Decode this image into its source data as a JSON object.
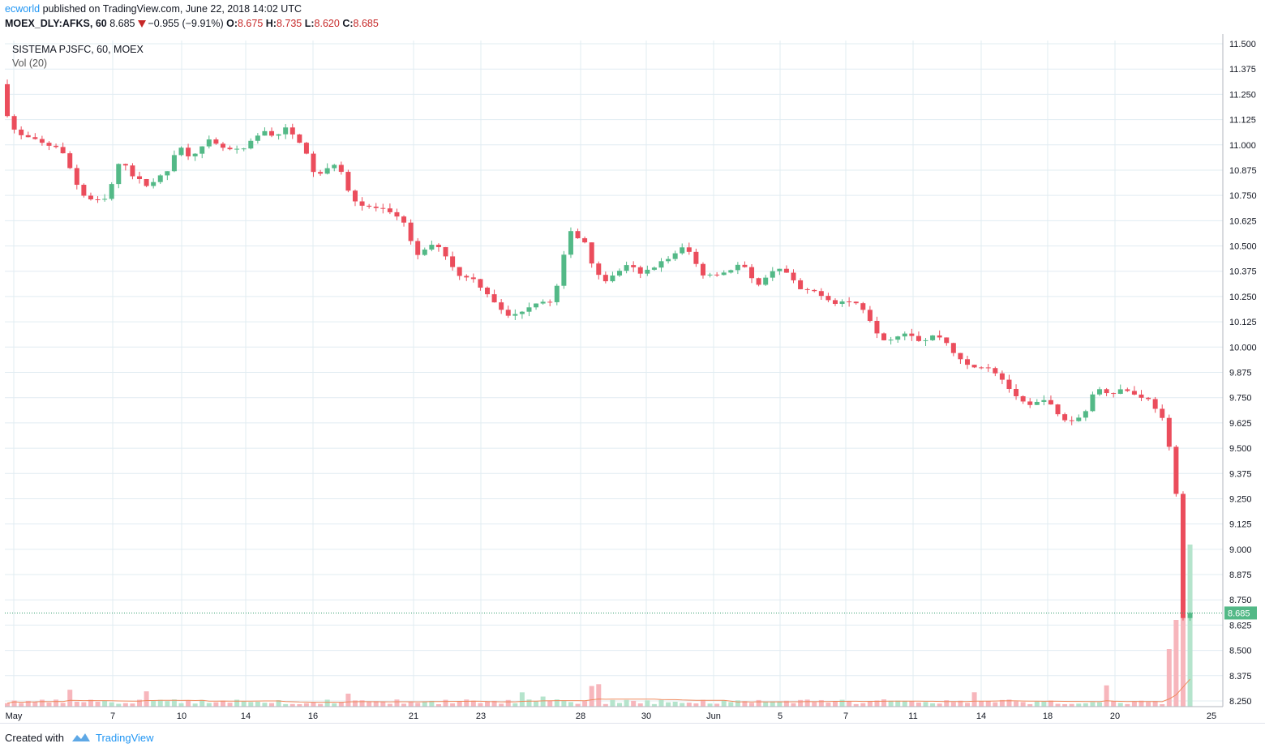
{
  "header": {
    "author": "ecworld",
    "published_text": "published on TradingView.com, June 22, 2018 14:02 UTC",
    "symbol": "MOEX_DLY:AFKS, 60",
    "last": "8.685",
    "change": "−0.955 (−9.91%)",
    "o_label": "O:",
    "o_value": "8.675",
    "h_label": "H:",
    "h_value": "8.735",
    "l_label": "L:",
    "l_value": "8.620",
    "c_label": "C:",
    "c_value": "8.685"
  },
  "legend": {
    "title": "SISTEMA PJSFC, 60, MOEX",
    "volume": "Vol (20)"
  },
  "footer": {
    "created_with": "Created with",
    "brand": "TradingView"
  },
  "colors": {
    "up": "#53b987",
    "down": "#eb4d5c",
    "up_volume": "#b5e4cc",
    "down_volume": "#f7b6bc",
    "grid": "#e1ecf2",
    "ma": "#f08a5d",
    "price_line": "#2e9c6a",
    "text": "#131722",
    "brand": "#2196f3"
  },
  "chart_data": {
    "type": "candlestick",
    "title": "SISTEMA PJSFC, 60, MOEX",
    "ylim": [
      8.25,
      11.5
    ],
    "y_ticks": [
      "11.500",
      "11.375",
      "11.250",
      "11.125",
      "11.000",
      "10.875",
      "10.750",
      "10.625",
      "10.500",
      "10.375",
      "10.250",
      "10.125",
      "10.000",
      "9.875",
      "9.750",
      "9.625",
      "9.500",
      "9.375",
      "9.250",
      "9.125",
      "9.000",
      "8.875",
      "8.750",
      "8.625",
      "8.500",
      "8.375",
      "8.250"
    ],
    "x_ticks": [
      "May",
      "7",
      "10",
      "14",
      "16",
      "21",
      "23",
      "28",
      "30",
      "Jun",
      "5",
      "7",
      "11",
      "14",
      "18",
      "20",
      "25"
    ],
    "last_price": "8.685",
    "volume_label": "Vol (20)",
    "grid": true,
    "price_series": [
      [
        0,
        11.3
      ],
      [
        2,
        11.2
      ],
      [
        6,
        11.1
      ],
      [
        10,
        11.05
      ],
      [
        18,
        11.03
      ],
      [
        26,
        11.0
      ],
      [
        34,
        10.99
      ],
      [
        42,
        10.85
      ],
      [
        46,
        10.76
      ],
      [
        52,
        10.73
      ],
      [
        58,
        10.72
      ],
      [
        62,
        10.74
      ],
      [
        66,
        10.87
      ],
      [
        70,
        10.93
      ],
      [
        76,
        10.85
      ],
      [
        84,
        10.8
      ],
      [
        90,
        10.83
      ],
      [
        96,
        10.87
      ],
      [
        102,
        11.0
      ],
      [
        108,
        10.95
      ],
      [
        114,
        10.97
      ],
      [
        120,
        11.02
      ],
      [
        126,
        10.99
      ],
      [
        134,
        10.97
      ],
      [
        140,
        10.98
      ],
      [
        146,
        11.03
      ],
      [
        152,
        11.07
      ],
      [
        158,
        11.04
      ],
      [
        164,
        11.08
      ],
      [
        168,
        11.05
      ],
      [
        174,
        11.0
      ],
      [
        178,
        10.9
      ],
      [
        182,
        10.84
      ],
      [
        188,
        10.88
      ],
      [
        194,
        10.92
      ],
      [
        198,
        10.82
      ],
      [
        202,
        10.74
      ],
      [
        208,
        10.7
      ],
      [
        214,
        10.69
      ],
      [
        220,
        10.68
      ],
      [
        226,
        10.65
      ],
      [
        232,
        10.62
      ],
      [
        236,
        10.52
      ],
      [
        240,
        10.45
      ],
      [
        246,
        10.5
      ],
      [
        252,
        10.5
      ],
      [
        256,
        10.45
      ],
      [
        260,
        10.4
      ],
      [
        264,
        10.35
      ],
      [
        270,
        10.35
      ],
      [
        274,
        10.32
      ],
      [
        278,
        10.28
      ],
      [
        282,
        10.25
      ],
      [
        286,
        10.2
      ],
      [
        290,
        10.16
      ],
      [
        294,
        10.15
      ],
      [
        298,
        10.17
      ],
      [
        304,
        10.2
      ],
      [
        310,
        10.23
      ],
      [
        316,
        10.22
      ],
      [
        320,
        10.3
      ],
      [
        324,
        10.45
      ],
      [
        328,
        10.58
      ],
      [
        332,
        10.54
      ],
      [
        336,
        10.52
      ],
      [
        340,
        10.42
      ],
      [
        344,
        10.36
      ],
      [
        348,
        10.33
      ],
      [
        352,
        10.35
      ],
      [
        356,
        10.38
      ],
      [
        360,
        10.4
      ],
      [
        364,
        10.39
      ],
      [
        368,
        10.36
      ],
      [
        372,
        10.38
      ],
      [
        376,
        10.4
      ],
      [
        380,
        10.42
      ],
      [
        384,
        10.44
      ],
      [
        388,
        10.46
      ],
      [
        392,
        10.49
      ],
      [
        396,
        10.47
      ],
      [
        400,
        10.41
      ],
      [
        404,
        10.36
      ],
      [
        410,
        10.36
      ],
      [
        416,
        10.37
      ],
      [
        422,
        10.39
      ],
      [
        426,
        10.42
      ],
      [
        430,
        10.36
      ],
      [
        434,
        10.31
      ],
      [
        438,
        10.32
      ],
      [
        442,
        10.36
      ],
      [
        446,
        10.4
      ],
      [
        450,
        10.38
      ],
      [
        454,
        10.35
      ],
      [
        458,
        10.3
      ],
      [
        462,
        10.27
      ],
      [
        466,
        10.28
      ],
      [
        470,
        10.27
      ],
      [
        474,
        10.25
      ],
      [
        478,
        10.22
      ],
      [
        482,
        10.22
      ],
      [
        486,
        10.23
      ],
      [
        490,
        10.22
      ],
      [
        494,
        10.21
      ],
      [
        498,
        10.17
      ],
      [
        502,
        10.1
      ],
      [
        506,
        10.05
      ],
      [
        510,
        10.03
      ],
      [
        514,
        10.05
      ],
      [
        518,
        10.07
      ],
      [
        522,
        10.07
      ],
      [
        526,
        10.05
      ],
      [
        530,
        10.02
      ],
      [
        534,
        10.05
      ],
      [
        538,
        10.06
      ],
      [
        542,
        10.04
      ],
      [
        546,
        10.0
      ],
      [
        550,
        9.95
      ],
      [
        554,
        9.92
      ],
      [
        558,
        9.9
      ],
      [
        562,
        9.9
      ],
      [
        566,
        9.91
      ],
      [
        570,
        9.89
      ],
      [
        574,
        9.86
      ],
      [
        578,
        9.82
      ],
      [
        582,
        9.77
      ],
      [
        586,
        9.73
      ],
      [
        590,
        9.72
      ],
      [
        594,
        9.7
      ],
      [
        598,
        9.75
      ],
      [
        602,
        9.74
      ],
      [
        606,
        9.68
      ],
      [
        610,
        9.65
      ],
      [
        614,
        9.63
      ],
      [
        618,
        9.64
      ],
      [
        622,
        9.66
      ],
      [
        626,
        9.72
      ],
      [
        630,
        9.8
      ],
      [
        634,
        9.79
      ],
      [
        638,
        9.77
      ],
      [
        642,
        9.78
      ],
      [
        646,
        9.8
      ],
      [
        650,
        9.77
      ],
      [
        654,
        9.76
      ],
      [
        658,
        9.75
      ],
      [
        662,
        9.73
      ],
      [
        666,
        9.67
      ],
      [
        670,
        9.62
      ],
      [
        672,
        9.5
      ],
      [
        674,
        9.3
      ],
      [
        676,
        9.27
      ],
      [
        678,
        8.85
      ],
      [
        679,
        8.65
      ],
      [
        681,
        8.685
      ]
    ],
    "volume_series_note": "low baseline with spike at end"
  }
}
